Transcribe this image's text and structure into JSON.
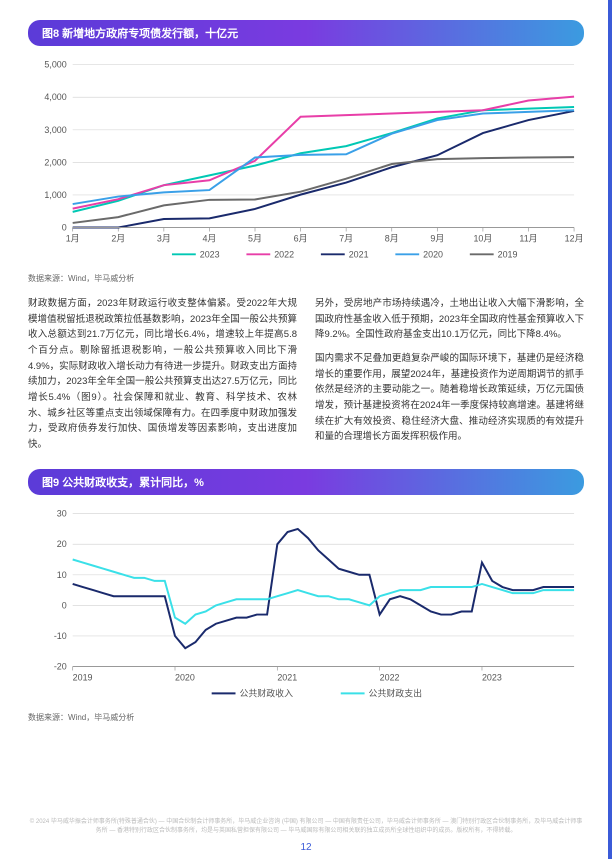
{
  "chart8": {
    "title": "图8 新增地方政府专项债发行额，十亿元",
    "type": "line",
    "months": [
      "1月",
      "2月",
      "3月",
      "4月",
      "5月",
      "6月",
      "7月",
      "8月",
      "9月",
      "10月",
      "11月",
      "12月"
    ],
    "series": [
      {
        "name": "2023",
        "color": "#00c8b4",
        "width": 2,
        "values": [
          480,
          820,
          1300,
          1600,
          1900,
          2280,
          2500,
          2900,
          3350,
          3600,
          3650,
          3700
        ]
      },
      {
        "name": "2022",
        "color": "#e83ea8",
        "width": 2,
        "values": [
          580,
          870,
          1300,
          1450,
          2050,
          3400,
          3450,
          3500,
          3550,
          3600,
          3900,
          4020
        ]
      },
      {
        "name": "2021",
        "color": "#1a2a6c",
        "width": 2,
        "values": [
          0,
          0,
          260,
          280,
          570,
          1010,
          1380,
          1850,
          2220,
          2900,
          3300,
          3580
        ]
      },
      {
        "name": "2020",
        "color": "#3aa0e8",
        "width": 2,
        "values": [
          720,
          950,
          1080,
          1150,
          2150,
          2230,
          2250,
          2880,
          3300,
          3500,
          3550,
          3600
        ]
      },
      {
        "name": "2019",
        "color": "#6a6a6a",
        "width": 2,
        "values": [
          140,
          320,
          680,
          850,
          860,
          1100,
          1500,
          1950,
          2100,
          2130,
          2150,
          2160
        ]
      }
    ],
    "ylim": [
      0,
      5000
    ],
    "ytick_step": 1000,
    "grid_color": "#d8d8d8",
    "axis_color": "#999",
    "label_fontsize": 9,
    "source": "数据来源：Wind，毕马威分析"
  },
  "body_left": "财政数据方面，2023年财政运行收支整体偏紧。受2022年大规模增值税留抵退税政策拉低基数影响，2023年全国一般公共预算收入总额达到21.7万亿元，同比增长6.4%，增速较上年提高5.8个百分点。剔除留抵退税影响，一般公共预算收入同比下滑4.9%，实际财政收入增长动力有待进一步提升。财政支出方面持续加力，2023年全年全国一般公共预算支出达27.5万亿元，同比增长5.4%（图9）。社会保障和就业、教育、科学技术、农林水、城乡社区等重点支出领域保障有力。在四季度中财政加强发力，受政府债券发行加快、国债增发等因素影响，支出进度加快。",
  "body_right": "另外，受房地产市场持续遇冷，土地出让收入大幅下滑影响，全国政府性基金收入低于预期，2023年全国政府性基金预算收入下降9.2%。全国性政府基金支出10.1万亿元，同比下降8.4%。\n\n国内需求不足叠加更趋复杂严峻的国际环境下，基建仍是经济稳增长的重要作用，展望2024年，基建投资作为逆周期调节的抓手依然是经济的主要动能之一。随着稳增长政策延续，万亿元国债增发，预计基建投资将在2024年一季度保持较高增速。基建将继续在扩大有效投资、稳住经济大盘、推动经济实现质的有效提升和量的合理增长方面发挥积极作用。",
  "chart9": {
    "title": "图9 公共财政收支，累计同比，%",
    "type": "line",
    "years": [
      "2019",
      "2020",
      "2021",
      "2022",
      "2023"
    ],
    "series": [
      {
        "name": "公共财政收入",
        "color": "#1a2a6c",
        "width": 2,
        "values": [
          7,
          6,
          5,
          4,
          3,
          3,
          3,
          3,
          3,
          3,
          -10,
          -14,
          -12,
          -8,
          -6,
          -5,
          -4,
          -4,
          -3,
          -3,
          20,
          24,
          25,
          22,
          18,
          15,
          12,
          11,
          10,
          10,
          -3,
          2,
          3,
          2,
          0,
          -2,
          -3,
          -3,
          -2,
          -2,
          14,
          8,
          6,
          5,
          5,
          5,
          6,
          6,
          6,
          6
        ]
      },
      {
        "name": "公共财政支出",
        "color": "#3ae0e8",
        "width": 2,
        "values": [
          15,
          14,
          13,
          12,
          11,
          10,
          9,
          9,
          8,
          8,
          -4,
          -6,
          -3,
          -2,
          0,
          1,
          2,
          2,
          2,
          2,
          3,
          4,
          5,
          4,
          3,
          3,
          2,
          2,
          1,
          0,
          3,
          4,
          5,
          5,
          5,
          6,
          6,
          6,
          6,
          6,
          7,
          6,
          5,
          4,
          4,
          4,
          5,
          5,
          5,
          5
        ]
      }
    ],
    "ylim": [
      -20,
      30
    ],
    "ytick_step": 10,
    "grid_color": "#d8d8d8",
    "axis_color": "#999",
    "label_fontsize": 9,
    "source": "数据来源：Wind，毕马威分析"
  },
  "footer": "© 2024 毕马威华振会计师事务所(特殊普通合伙) — 中国合伙制会计师事务所，毕马威企业咨询 (中国) 有限公司 — 中国有限责任公司，毕马威会计师事务所 — 澳门特别行政区合伙制事务所，及毕马威会计师事务所 — 香港特别行政区合伙制事务所，均是与英国私营担保有限公司 — 毕马威国际有限公司相关联的独立成员所全球性组织中的成员。版权所有，不得转载。",
  "page_number": "12"
}
